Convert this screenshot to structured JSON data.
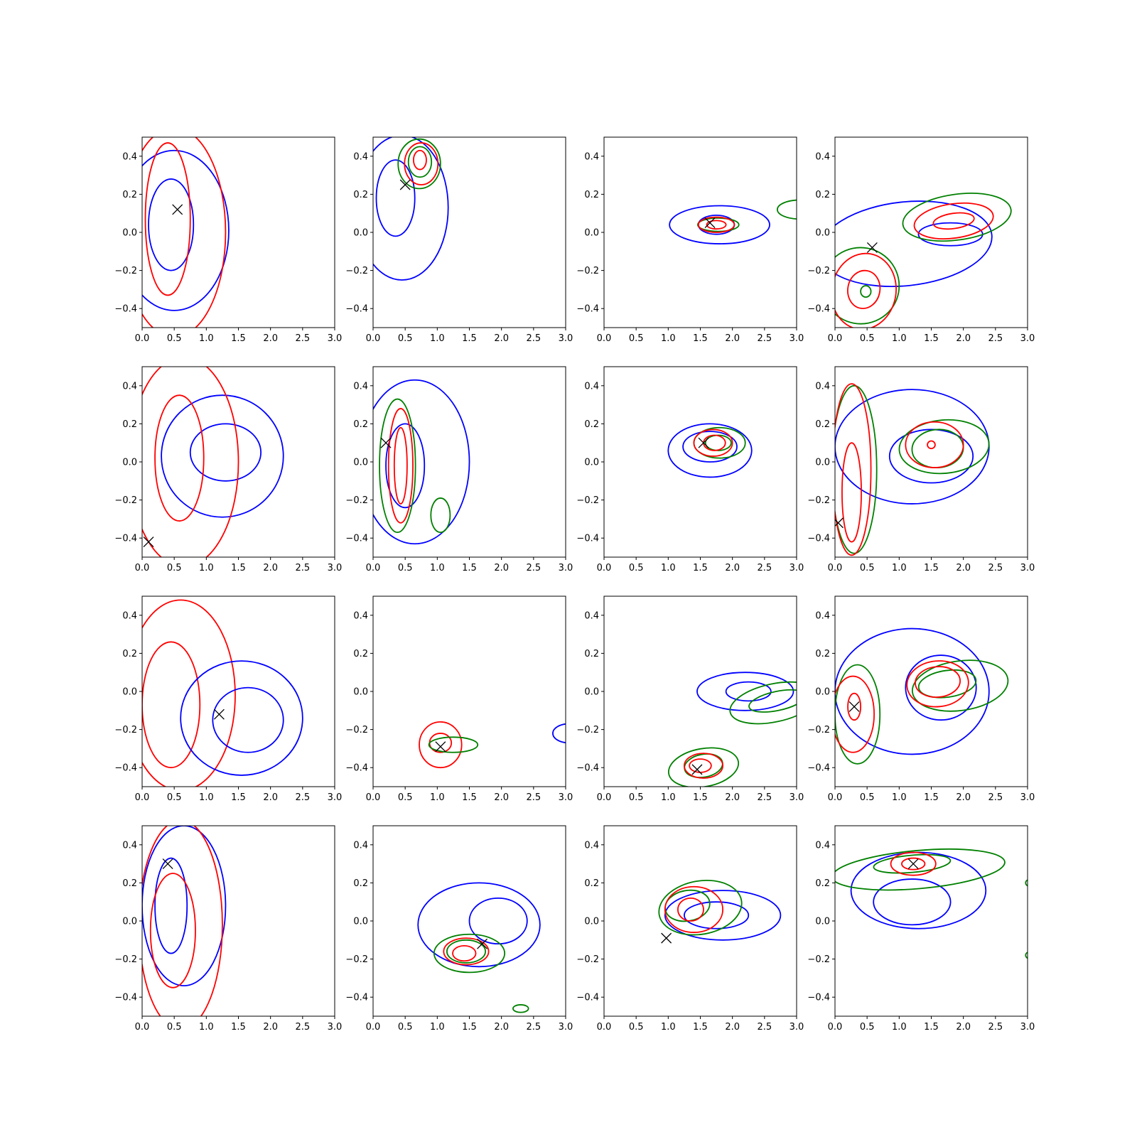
{
  "colors": {
    "blue": "#0000ff",
    "green": "#008000",
    "red": "#ff0000",
    "marker": "#000000"
  },
  "axes_common": {
    "xlim": [
      0,
      3.0
    ],
    "ylim": [
      -0.5,
      0.5
    ],
    "xticks": [
      "0.0",
      "0.5",
      "1.0",
      "1.5",
      "2.0",
      "2.5",
      "3.0"
    ],
    "yticks": [
      "−0.4",
      "−0.2",
      "0.0",
      "0.2",
      "0.4"
    ],
    "grid": false
  },
  "chart_data": [
    {
      "type": "contour",
      "marker": [
        0.55,
        0.12
      ],
      "contours": [
        {
          "color": "blue",
          "cx": 0.5,
          "cy": 0.01,
          "rx": 0.85,
          "ry": 0.42,
          "rot": 0
        },
        {
          "color": "blue",
          "cx": 0.45,
          "cy": 0.04,
          "rx": 0.35,
          "ry": 0.24,
          "rot": 0
        },
        {
          "color": "red",
          "cx": 0.5,
          "cy": 0.0,
          "rx": 0.8,
          "ry": 0.55,
          "rot": 0
        },
        {
          "color": "red",
          "cx": 0.4,
          "cy": 0.07,
          "rx": 0.35,
          "ry": 0.4,
          "rot": 0
        }
      ]
    },
    {
      "type": "contour",
      "marker": [
        0.5,
        0.25
      ],
      "contours": [
        {
          "color": "blue",
          "cx": 0.45,
          "cy": 0.13,
          "rx": 0.72,
          "ry": 0.38,
          "rot": 0
        },
        {
          "color": "blue",
          "cx": 0.35,
          "cy": 0.18,
          "rx": 0.3,
          "ry": 0.2,
          "rot": 0
        },
        {
          "color": "green",
          "cx": 0.72,
          "cy": 0.36,
          "rx": 0.33,
          "ry": 0.13,
          "rot": 0
        },
        {
          "color": "green",
          "cx": 0.73,
          "cy": 0.37,
          "rx": 0.18,
          "ry": 0.08,
          "rot": 0
        },
        {
          "color": "red",
          "cx": 0.75,
          "cy": 0.36,
          "rx": 0.26,
          "ry": 0.11,
          "rot": 0
        },
        {
          "color": "red",
          "cx": 0.73,
          "cy": 0.38,
          "rx": 0.1,
          "ry": 0.05,
          "rot": 0
        }
      ]
    },
    {
      "type": "contour",
      "marker": [
        1.65,
        0.05
      ],
      "contours": [
        {
          "color": "blue",
          "cx": 1.8,
          "cy": 0.04,
          "rx": 0.78,
          "ry": 0.1,
          "rot": 0
        },
        {
          "color": "blue",
          "cx": 1.75,
          "cy": 0.04,
          "rx": 0.28,
          "ry": 0.05,
          "rot": 0
        },
        {
          "color": "green",
          "cx": 1.78,
          "cy": 0.04,
          "rx": 0.32,
          "ry": 0.035,
          "rot": 0
        },
        {
          "color": "red",
          "cx": 1.75,
          "cy": 0.04,
          "rx": 0.28,
          "ry": 0.04,
          "rot": 0
        },
        {
          "color": "red",
          "cx": 1.75,
          "cy": 0.04,
          "rx": 0.15,
          "ry": 0.022,
          "rot": 0
        },
        {
          "color": "green",
          "cx": 3.05,
          "cy": 0.12,
          "rx": 0.35,
          "ry": 0.05,
          "rot": 0
        }
      ]
    },
    {
      "type": "contour",
      "marker": [
        0.58,
        -0.08
      ],
      "contours": [
        {
          "color": "blue",
          "cx": 1.1,
          "cy": -0.06,
          "rx": 1.35,
          "ry": 0.22,
          "rot": -6
        },
        {
          "color": "blue",
          "cx": 1.8,
          "cy": -0.01,
          "rx": 0.5,
          "ry": 0.06,
          "rot": 0
        },
        {
          "color": "green",
          "cx": 1.9,
          "cy": 0.08,
          "rx": 0.85,
          "ry": 0.12,
          "rot": -8
        },
        {
          "color": "red",
          "cx": 1.85,
          "cy": 0.06,
          "rx": 0.62,
          "ry": 0.09,
          "rot": -8
        },
        {
          "color": "red",
          "cx": 1.85,
          "cy": 0.06,
          "rx": 0.32,
          "ry": 0.04,
          "rot": -8
        },
        {
          "color": "green",
          "cx": 0.4,
          "cy": -0.28,
          "rx": 0.6,
          "ry": 0.2,
          "rot": 10
        },
        {
          "color": "red",
          "cx": 0.45,
          "cy": -0.31,
          "rx": 0.5,
          "ry": 0.2,
          "rot": 10
        },
        {
          "color": "red",
          "cx": 0.45,
          "cy": -0.3,
          "rx": 0.25,
          "ry": 0.1,
          "rot": 10
        },
        {
          "color": "green",
          "cx": 0.48,
          "cy": -0.31,
          "rx": 0.08,
          "ry": 0.03,
          "rot": 0
        }
      ]
    },
    {
      "type": "contour",
      "marker": [
        0.1,
        -0.42
      ],
      "contours": [
        {
          "color": "blue",
          "cx": 1.25,
          "cy": 0.03,
          "rx": 0.95,
          "ry": 0.32,
          "rot": 0
        },
        {
          "color": "blue",
          "cx": 1.3,
          "cy": 0.05,
          "rx": 0.55,
          "ry": 0.15,
          "rot": 0
        },
        {
          "color": "red",
          "cx": 0.65,
          "cy": 0.0,
          "rx": 0.85,
          "ry": 0.55,
          "rot": 0
        },
        {
          "color": "red",
          "cx": 0.58,
          "cy": 0.02,
          "rx": 0.38,
          "ry": 0.33,
          "rot": 0
        }
      ]
    },
    {
      "type": "contour",
      "marker": [
        0.2,
        0.1
      ],
      "contours": [
        {
          "color": "blue",
          "cx": 0.65,
          "cy": 0.0,
          "rx": 0.85,
          "ry": 0.43,
          "rot": 0
        },
        {
          "color": "blue",
          "cx": 0.5,
          "cy": -0.02,
          "rx": 0.3,
          "ry": 0.22,
          "rot": 0
        },
        {
          "color": "green",
          "cx": 0.38,
          "cy": -0.02,
          "rx": 0.28,
          "ry": 0.35,
          "rot": 0
        },
        {
          "color": "green",
          "cx": 1.05,
          "cy": -0.28,
          "rx": 0.15,
          "ry": 0.09,
          "rot": 0
        },
        {
          "color": "red",
          "cx": 0.43,
          "cy": -0.02,
          "rx": 0.19,
          "ry": 0.3,
          "rot": 0
        },
        {
          "color": "red",
          "cx": 0.43,
          "cy": -0.02,
          "rx": 0.1,
          "ry": 0.2,
          "rot": 0
        }
      ]
    },
    {
      "type": "contour",
      "marker": [
        1.55,
        0.1
      ],
      "contours": [
        {
          "color": "blue",
          "cx": 1.65,
          "cy": 0.06,
          "rx": 0.65,
          "ry": 0.14,
          "rot": 0
        },
        {
          "color": "blue",
          "cx": 1.65,
          "cy": 0.08,
          "rx": 0.42,
          "ry": 0.08,
          "rot": 0
        },
        {
          "color": "green",
          "cx": 1.8,
          "cy": 0.1,
          "rx": 0.4,
          "ry": 0.08,
          "rot": 0
        },
        {
          "color": "green",
          "cx": 1.78,
          "cy": 0.1,
          "rx": 0.2,
          "ry": 0.04,
          "rot": 0
        },
        {
          "color": "red",
          "cx": 1.7,
          "cy": 0.1,
          "rx": 0.3,
          "ry": 0.07,
          "rot": 0
        },
        {
          "color": "red",
          "cx": 1.72,
          "cy": 0.1,
          "rx": 0.17,
          "ry": 0.04,
          "rot": 0
        }
      ]
    },
    {
      "type": "contour",
      "marker": [
        0.05,
        -0.32
      ],
      "contours": [
        {
          "color": "blue",
          "cx": 1.2,
          "cy": 0.08,
          "rx": 1.2,
          "ry": 0.3,
          "rot": 0
        },
        {
          "color": "blue",
          "cx": 1.5,
          "cy": 0.03,
          "rx": 0.65,
          "ry": 0.14,
          "rot": 0
        },
        {
          "color": "green",
          "cx": 1.7,
          "cy": 0.08,
          "rx": 0.7,
          "ry": 0.14,
          "rot": -5
        },
        {
          "color": "green",
          "cx": 1.6,
          "cy": 0.07,
          "rx": 0.4,
          "ry": 0.1,
          "rot": -5
        },
        {
          "color": "green",
          "cx": 0.3,
          "cy": -0.04,
          "rx": 0.35,
          "ry": 0.44,
          "rot": 0
        },
        {
          "color": "red",
          "cx": 1.55,
          "cy": 0.09,
          "rx": 0.45,
          "ry": 0.12,
          "rot": 0
        },
        {
          "color": "red",
          "cx": 1.5,
          "cy": 0.09,
          "rx": 0.06,
          "ry": 0.02,
          "rot": 0
        },
        {
          "color": "red",
          "cx": 0.26,
          "cy": -0.04,
          "rx": 0.3,
          "ry": 0.45,
          "rot": 0
        },
        {
          "color": "red",
          "cx": 0.26,
          "cy": -0.16,
          "rx": 0.15,
          "ry": 0.26,
          "rot": 0
        }
      ]
    },
    {
      "type": "contour",
      "marker": [
        1.2,
        -0.12
      ],
      "contours": [
        {
          "color": "red",
          "cx": 0.6,
          "cy": -0.02,
          "rx": 0.85,
          "ry": 0.5,
          "rot": 0
        },
        {
          "color": "red",
          "cx": 0.45,
          "cy": -0.07,
          "rx": 0.45,
          "ry": 0.33,
          "rot": 0
        },
        {
          "color": "blue",
          "cx": 1.55,
          "cy": -0.14,
          "rx": 0.95,
          "ry": 0.3,
          "rot": 0
        },
        {
          "color": "blue",
          "cx": 1.65,
          "cy": -0.15,
          "rx": 0.55,
          "ry": 0.17,
          "rot": 0
        }
      ]
    },
    {
      "type": "contour",
      "marker": [
        1.05,
        -0.29
      ],
      "contours": [
        {
          "color": "red",
          "cx": 1.05,
          "cy": -0.28,
          "rx": 0.33,
          "ry": 0.12,
          "rot": 0
        },
        {
          "color": "red",
          "cx": 1.05,
          "cy": -0.27,
          "rx": 0.17,
          "ry": 0.05,
          "rot": 0
        },
        {
          "color": "green",
          "cx": 1.25,
          "cy": -0.28,
          "rx": 0.38,
          "ry": 0.04,
          "rot": 0
        },
        {
          "color": "blue",
          "cx": 3.05,
          "cy": -0.22,
          "rx": 0.25,
          "ry": 0.05,
          "rot": 0
        }
      ]
    },
    {
      "type": "contour",
      "marker": [
        1.45,
        -0.41
      ],
      "contours": [
        {
          "color": "blue",
          "cx": 2.2,
          "cy": 0.0,
          "rx": 0.75,
          "ry": 0.1,
          "rot": 0
        },
        {
          "color": "blue",
          "cx": 2.25,
          "cy": 0.0,
          "rx": 0.35,
          "ry": 0.05,
          "rot": 0
        },
        {
          "color": "green",
          "cx": 2.65,
          "cy": -0.06,
          "rx": 0.7,
          "ry": 0.1,
          "rot": -12
        },
        {
          "color": "green",
          "cx": 2.7,
          "cy": -0.05,
          "rx": 0.45,
          "ry": 0.05,
          "rot": -12
        },
        {
          "color": "green",
          "cx": 1.55,
          "cy": -0.4,
          "rx": 0.55,
          "ry": 0.1,
          "rot": -10
        },
        {
          "color": "green",
          "cx": 1.55,
          "cy": -0.39,
          "rx": 0.3,
          "ry": 0.06,
          "rot": -10
        },
        {
          "color": "red",
          "cx": 1.55,
          "cy": -0.39,
          "rx": 0.3,
          "ry": 0.065,
          "rot": 0
        },
        {
          "color": "red",
          "cx": 1.5,
          "cy": -0.39,
          "rx": 0.17,
          "ry": 0.035,
          "rot": 0
        }
      ]
    },
    {
      "type": "contour",
      "marker": [
        0.3,
        -0.08
      ],
      "contours": [
        {
          "color": "blue",
          "cx": 1.2,
          "cy": 0.0,
          "rx": 1.2,
          "ry": 0.33,
          "rot": 0
        },
        {
          "color": "blue",
          "cx": 1.65,
          "cy": 0.02,
          "rx": 0.55,
          "ry": 0.17,
          "rot": 0
        },
        {
          "color": "green",
          "cx": 1.95,
          "cy": 0.03,
          "rx": 0.75,
          "ry": 0.13,
          "rot": -8
        },
        {
          "color": "green",
          "cx": 1.75,
          "cy": 0.04,
          "rx": 0.45,
          "ry": 0.07,
          "rot": -8
        },
        {
          "color": "green",
          "cx": 0.35,
          "cy": -0.12,
          "rx": 0.35,
          "ry": 0.26,
          "rot": 0
        },
        {
          "color": "red",
          "cx": 1.6,
          "cy": 0.04,
          "rx": 0.48,
          "ry": 0.12,
          "rot": -5
        },
        {
          "color": "red",
          "cx": 1.6,
          "cy": 0.05,
          "rx": 0.35,
          "ry": 0.08,
          "rot": -5
        },
        {
          "color": "red",
          "cx": 0.28,
          "cy": -0.12,
          "rx": 0.33,
          "ry": 0.2,
          "rot": 0
        },
        {
          "color": "red",
          "cx": 0.3,
          "cy": -0.08,
          "rx": 0.1,
          "ry": 0.07,
          "rot": 0
        }
      ]
    },
    {
      "type": "contour",
      "marker": [
        0.4,
        0.3
      ],
      "contours": [
        {
          "color": "blue",
          "cx": 0.65,
          "cy": 0.08,
          "rx": 0.65,
          "ry": 0.42,
          "rot": 0
        },
        {
          "color": "blue",
          "cx": 0.45,
          "cy": 0.08,
          "rx": 0.25,
          "ry": 0.25,
          "rot": 0
        },
        {
          "color": "red",
          "cx": 0.6,
          "cy": -0.02,
          "rx": 0.65,
          "ry": 0.55,
          "rot": 0
        },
        {
          "color": "red",
          "cx": 0.48,
          "cy": -0.05,
          "rx": 0.35,
          "ry": 0.3,
          "rot": 0
        }
      ]
    },
    {
      "type": "contour",
      "marker": [
        1.7,
        -0.12
      ],
      "contours": [
        {
          "color": "blue",
          "cx": 1.65,
          "cy": -0.02,
          "rx": 0.95,
          "ry": 0.22,
          "rot": 0
        },
        {
          "color": "blue",
          "cx": 1.95,
          "cy": 0.0,
          "rx": 0.45,
          "ry": 0.12,
          "rot": 0
        },
        {
          "color": "green",
          "cx": 1.5,
          "cy": -0.17,
          "rx": 0.55,
          "ry": 0.1,
          "rot": 0
        },
        {
          "color": "green",
          "cx": 1.45,
          "cy": -0.16,
          "rx": 0.3,
          "ry": 0.06,
          "rot": 0
        },
        {
          "color": "green",
          "cx": 2.3,
          "cy": -0.46,
          "rx": 0.12,
          "ry": 0.02,
          "rot": 0
        },
        {
          "color": "red",
          "cx": 1.45,
          "cy": -0.16,
          "rx": 0.35,
          "ry": 0.07,
          "rot": 0
        },
        {
          "color": "red",
          "cx": 1.42,
          "cy": -0.17,
          "rx": 0.18,
          "ry": 0.04,
          "rot": 0
        }
      ]
    },
    {
      "type": "contour",
      "marker": [
        0.97,
        -0.09
      ],
      "contours": [
        {
          "color": "blue",
          "cx": 1.85,
          "cy": 0.03,
          "rx": 0.9,
          "ry": 0.13,
          "rot": 0
        },
        {
          "color": "blue",
          "cx": 1.75,
          "cy": 0.03,
          "rx": 0.5,
          "ry": 0.07,
          "rot": 0
        },
        {
          "color": "green",
          "cx": 1.5,
          "cy": 0.07,
          "rx": 0.65,
          "ry": 0.14,
          "rot": -10
        },
        {
          "color": "green",
          "cx": 1.3,
          "cy": 0.08,
          "rx": 0.35,
          "ry": 0.08,
          "rot": -10
        },
        {
          "color": "red",
          "cx": 1.4,
          "cy": 0.06,
          "rx": 0.45,
          "ry": 0.12,
          "rot": 0
        },
        {
          "color": "red",
          "cx": 1.35,
          "cy": 0.06,
          "rx": 0.2,
          "ry": 0.06,
          "rot": 0
        }
      ]
    },
    {
      "type": "contour",
      "marker": [
        1.22,
        0.3
      ],
      "contours": [
        {
          "color": "blue",
          "cx": 1.3,
          "cy": 0.16,
          "rx": 1.05,
          "ry": 0.2,
          "rot": 0
        },
        {
          "color": "blue",
          "cx": 1.2,
          "cy": 0.1,
          "rx": 0.6,
          "ry": 0.12,
          "rot": 0
        },
        {
          "color": "green",
          "cx": 1.3,
          "cy": 0.27,
          "rx": 1.35,
          "ry": 0.1,
          "rot": -5
        },
        {
          "color": "green",
          "cx": 1.2,
          "cy": 0.3,
          "rx": 0.6,
          "ry": 0.045,
          "rot": -5
        },
        {
          "color": "green",
          "cx": 3.05,
          "cy": 0.2,
          "rx": 0.08,
          "ry": 0.02,
          "rot": 0
        },
        {
          "color": "green",
          "cx": 3.05,
          "cy": -0.18,
          "rx": 0.08,
          "ry": 0.02,
          "rot": 0
        },
        {
          "color": "red",
          "cx": 1.22,
          "cy": 0.3,
          "rx": 0.35,
          "ry": 0.06,
          "rot": 0
        },
        {
          "color": "red",
          "cx": 1.22,
          "cy": 0.3,
          "rx": 0.18,
          "ry": 0.03,
          "rot": 0
        }
      ]
    }
  ]
}
